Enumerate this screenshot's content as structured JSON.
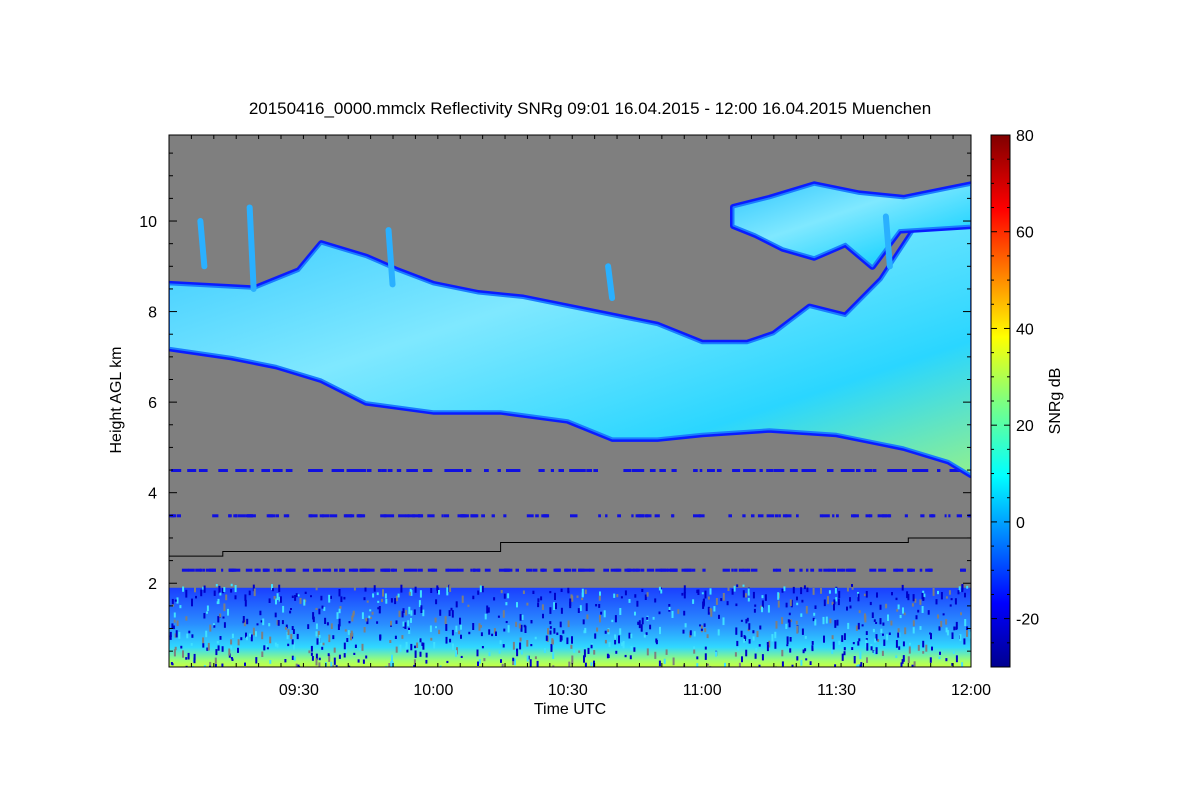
{
  "chart_data": {
    "type": "heatmap",
    "title": "20150416_0000.mmclx Reflectivity SNRg   09:01 16.04.2015 - 12:00 16.04.2015 Muenchen",
    "xlabel": "Time UTC",
    "ylabel": "Height AGL km",
    "x_range": [
      "09:01",
      "12:00"
    ],
    "x_ticks": [
      "09:30",
      "10:00",
      "10:30",
      "11:00",
      "11:30",
      "12:00"
    ],
    "ylim": [
      0.15,
      11.9
    ],
    "y_ticks": [
      2,
      4,
      6,
      8,
      10
    ],
    "colorbar": {
      "label": "SNRg dB",
      "range": [
        -30,
        80
      ],
      "ticks": [
        -20,
        0,
        20,
        40,
        60,
        80
      ],
      "colormap": "jet"
    },
    "background_color": "#7f7f7f",
    "cloud_layer": {
      "description": "",
      "upper_boundary": [
        {
          "time": "09:01",
          "height_km": 8.6
        },
        {
          "time": "09:20",
          "height_km": 8.5
        },
        {
          "time": "09:30",
          "height_km": 8.9
        },
        {
          "time": "09:35",
          "height_km": 9.5
        },
        {
          "time": "09:45",
          "height_km": 9.2
        },
        {
          "time": "09:52",
          "height_km": 8.9
        },
        {
          "time": "10:00",
          "height_km": 8.6
        },
        {
          "time": "10:10",
          "height_km": 8.4
        },
        {
          "time": "10:20",
          "height_km": 8.3
        },
        {
          "time": "10:35",
          "height_km": 8.0
        },
        {
          "time": "10:50",
          "height_km": 7.7
        },
        {
          "time": "11:00",
          "height_km": 7.3
        },
        {
          "time": "11:10",
          "height_km": 7.3
        },
        {
          "time": "11:16",
          "height_km": 7.5
        },
        {
          "time": "11:24",
          "height_km": 8.1
        },
        {
          "time": "11:32",
          "height_km": 7.9
        },
        {
          "time": "11:40",
          "height_km": 8.7
        },
        {
          "time": "11:48",
          "height_km": 9.9
        },
        {
          "time": "12:00",
          "height_km": 10.3
        }
      ],
      "lower_boundary": [
        {
          "time": "09:01",
          "height_km": 7.2
        },
        {
          "time": "09:15",
          "height_km": 7.0
        },
        {
          "time": "09:25",
          "height_km": 6.8
        },
        {
          "time": "09:35",
          "height_km": 6.5
        },
        {
          "time": "09:45",
          "height_km": 6.0
        },
        {
          "time": "10:00",
          "height_km": 5.8
        },
        {
          "time": "10:15",
          "height_km": 5.8
        },
        {
          "time": "10:30",
          "height_km": 5.6
        },
        {
          "time": "10:40",
          "height_km": 5.2
        },
        {
          "time": "10:50",
          "height_km": 5.2
        },
        {
          "time": "11:00",
          "height_km": 5.3
        },
        {
          "time": "11:15",
          "height_km": 5.4
        },
        {
          "time": "11:30",
          "height_km": 5.3
        },
        {
          "time": "11:45",
          "height_km": 5.0
        },
        {
          "time": "11:55",
          "height_km": 4.7
        },
        {
          "time": "12:00",
          "height_km": 4.4
        }
      ]
    },
    "upper_patch": {
      "upper_boundary": [
        {
          "time": "11:07",
          "height_km": 10.3
        },
        {
          "time": "11:15",
          "height_km": 10.5
        },
        {
          "time": "11:25",
          "height_km": 10.8
        },
        {
          "time": "11:35",
          "height_km": 10.6
        },
        {
          "time": "11:45",
          "height_km": 10.5
        },
        {
          "time": "11:55",
          "height_km": 10.7
        },
        {
          "time": "12:00",
          "height_km": 10.8
        }
      ],
      "lower_boundary": [
        {
          "time": "11:07",
          "height_km": 9.9
        },
        {
          "time": "11:12",
          "height_km": 9.7
        },
        {
          "time": "11:18",
          "height_km": 9.4
        },
        {
          "time": "11:25",
          "height_km": 9.2
        },
        {
          "time": "11:32",
          "height_km": 9.5
        },
        {
          "time": "11:38",
          "height_km": 9.0
        },
        {
          "time": "11:44",
          "height_km": 9.8
        },
        {
          "time": "12:00",
          "height_km": 9.9
        }
      ]
    },
    "boundary_layer_line": [
      {
        "time": "09:01",
        "height_km": 2.6
      },
      {
        "time": "09:13",
        "height_km": 2.6
      },
      {
        "time": "09:13",
        "height_km": 2.7
      },
      {
        "time": "10:15",
        "height_km": 2.7
      },
      {
        "time": "10:15",
        "height_km": 2.9
      },
      {
        "time": "11:46",
        "height_km": 2.9
      },
      {
        "time": "11:46",
        "height_km": 3.0
      },
      {
        "time": "12:00",
        "height_km": 3.0
      }
    ]
  }
}
